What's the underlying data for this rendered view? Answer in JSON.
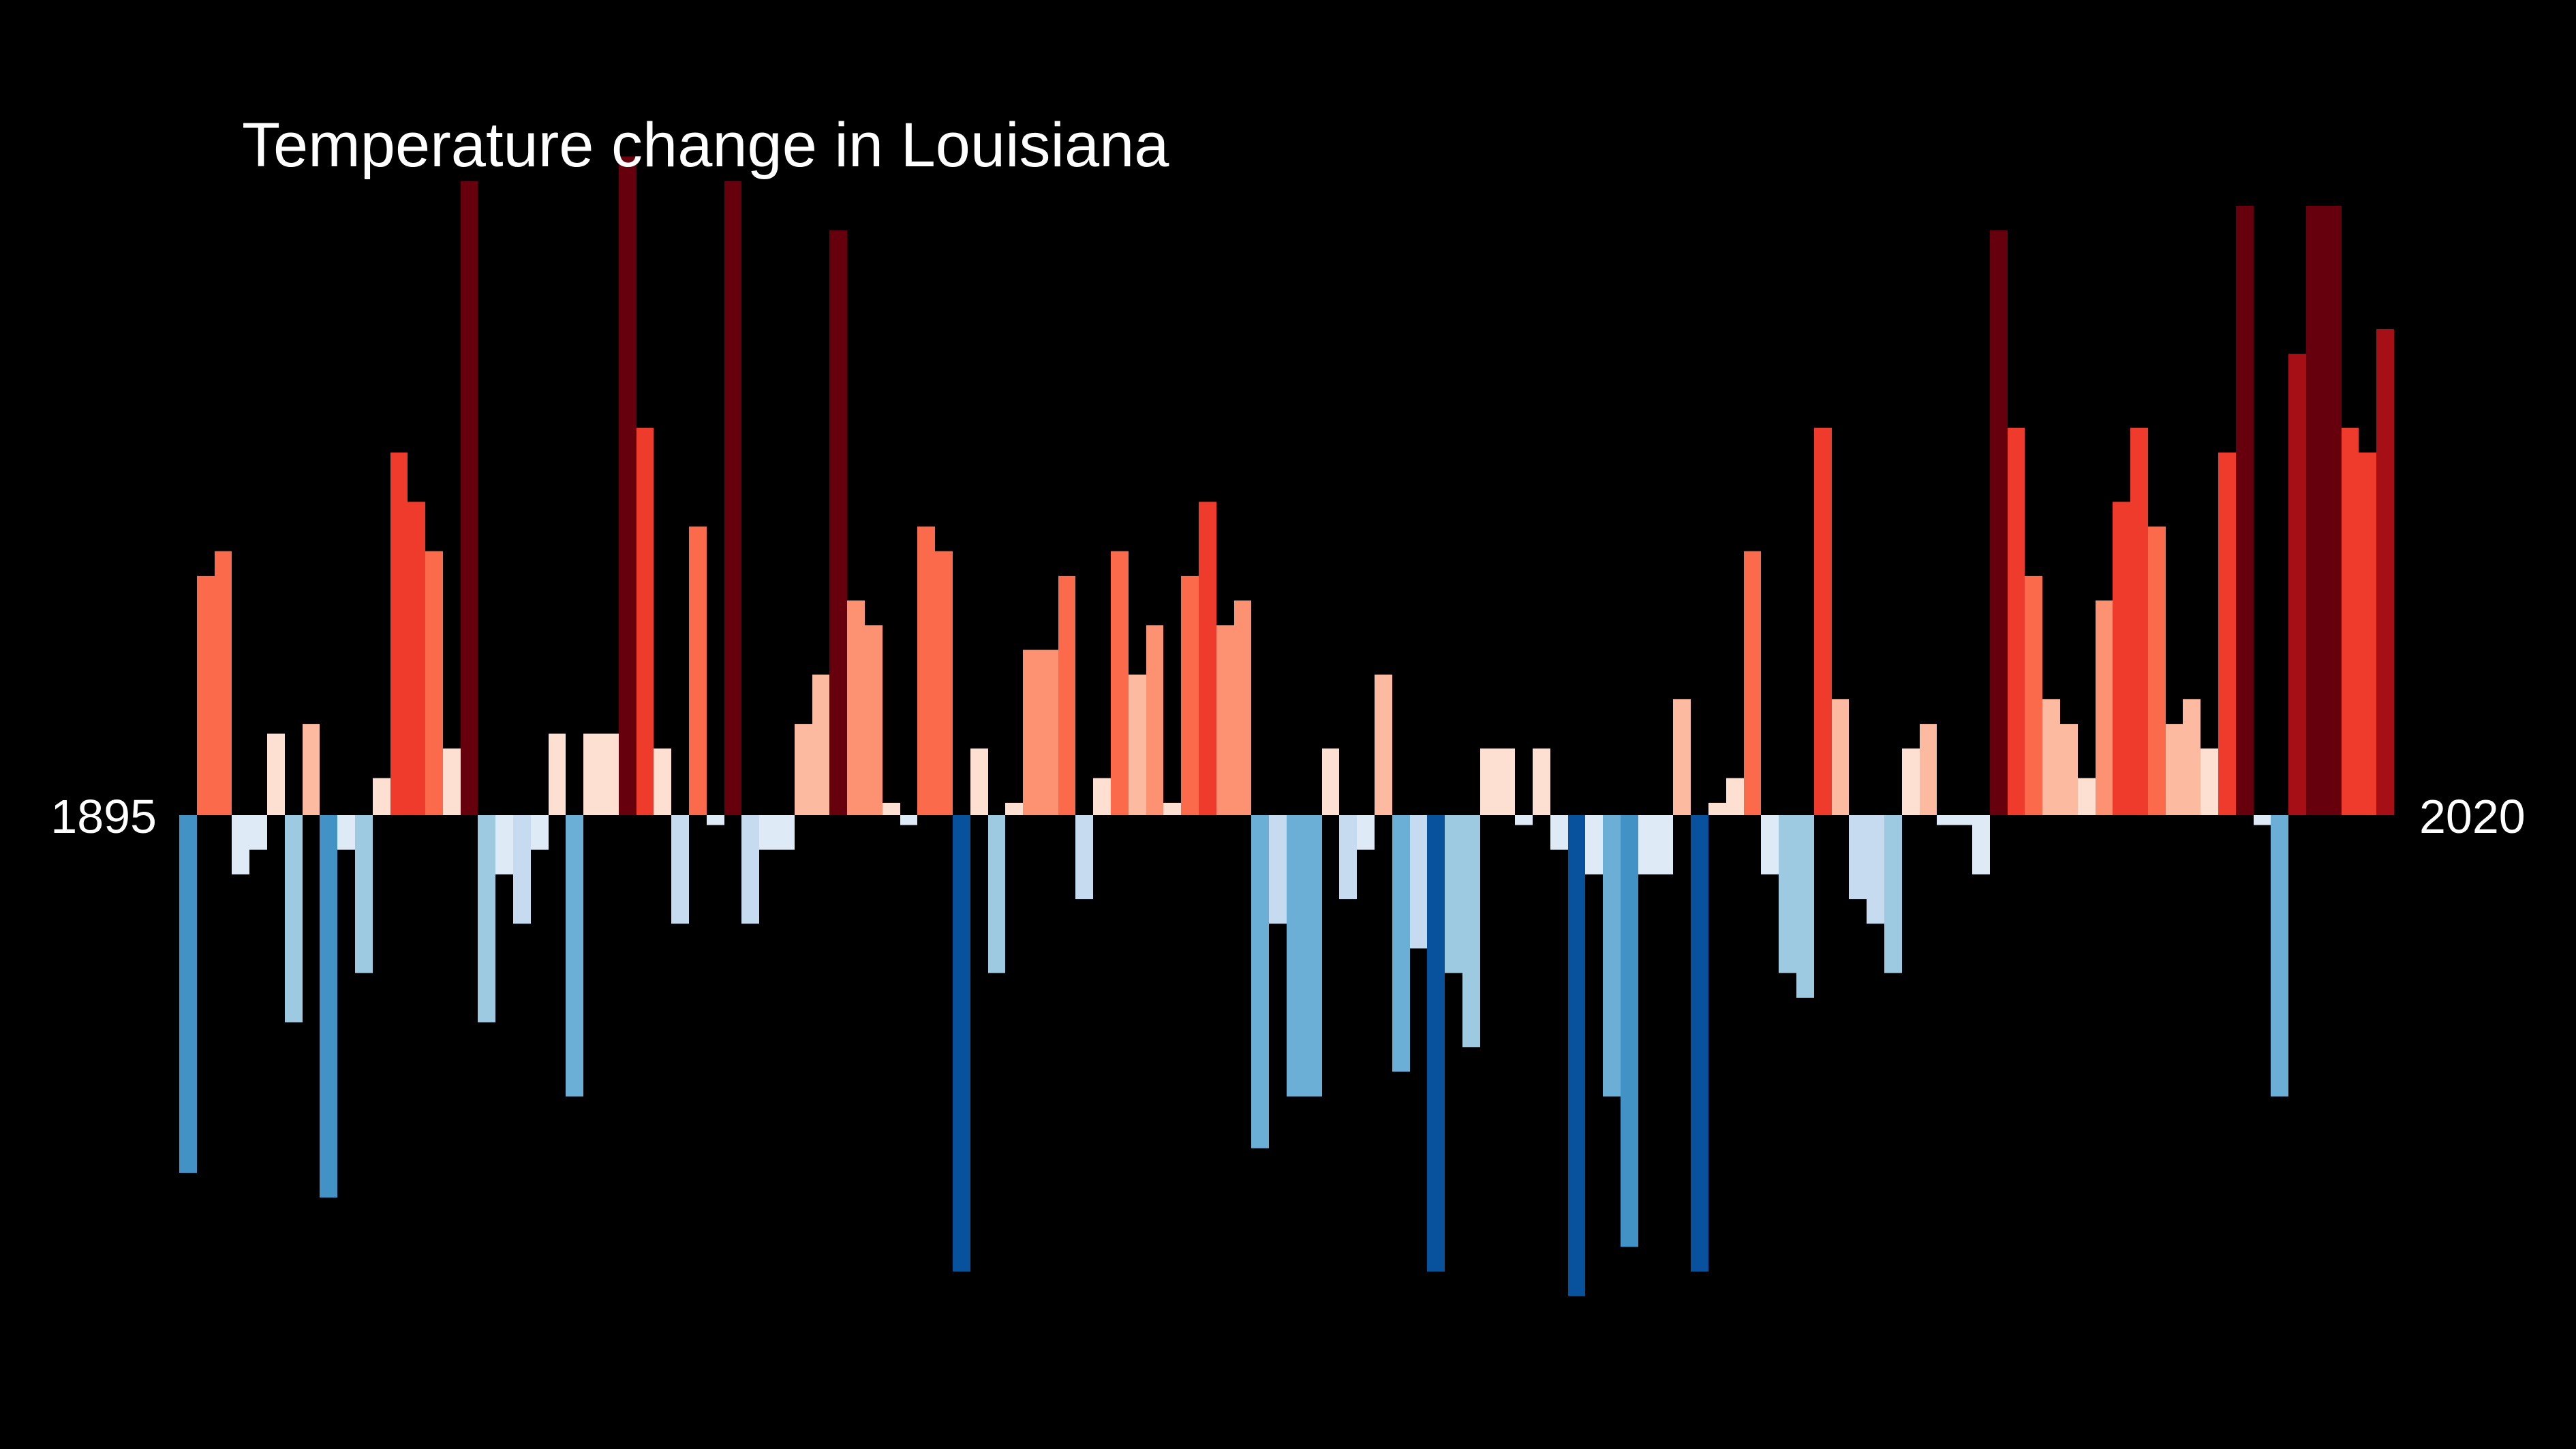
{
  "chart_data": {
    "type": "bar",
    "title": "Temperature change in Louisiana",
    "xlabel": "",
    "ylabel": "",
    "start_year": "1895",
    "end_year": "2020",
    "x": [
      1895,
      1896,
      1897,
      1898,
      1899,
      1900,
      1901,
      1902,
      1903,
      1904,
      1905,
      1906,
      1907,
      1908,
      1909,
      1910,
      1911,
      1912,
      1913,
      1914,
      1915,
      1916,
      1917,
      1918,
      1919,
      1920,
      1921,
      1922,
      1923,
      1924,
      1925,
      1926,
      1927,
      1928,
      1929,
      1930,
      1931,
      1932,
      1933,
      1934,
      1935,
      1936,
      1937,
      1938,
      1939,
      1940,
      1941,
      1942,
      1943,
      1944,
      1945,
      1946,
      1947,
      1948,
      1949,
      1950,
      1951,
      1952,
      1953,
      1954,
      1955,
      1956,
      1957,
      1958,
      1959,
      1960,
      1961,
      1962,
      1963,
      1964,
      1965,
      1966,
      1967,
      1968,
      1969,
      1970,
      1971,
      1972,
      1973,
      1974,
      1975,
      1976,
      1977,
      1978,
      1979,
      1980,
      1981,
      1982,
      1983,
      1984,
      1985,
      1986,
      1987,
      1988,
      1989,
      1990,
      1991,
      1992,
      1993,
      1994,
      1995,
      1996,
      1997,
      1998,
      1999,
      2000,
      2001,
      2002,
      2003,
      2004,
      2005,
      2006,
      2007,
      2008,
      2009,
      2010,
      2011,
      2012,
      2013,
      2014,
      2015,
      2016,
      2017,
      2018,
      2019,
      2020
    ],
    "values": [
      -14.5,
      9.7,
      10.7,
      -2.4,
      -1.4,
      3.3,
      -8.4,
      3.7,
      -15.5,
      -1.4,
      -6.4,
      1.5,
      14.7,
      12.7,
      10.7,
      2.7,
      25.7,
      -8.4,
      -2.4,
      -4.4,
      -1.4,
      3.3,
      -11.4,
      3.3,
      3.3,
      26.7,
      15.7,
      2.7,
      -4.4,
      11.7,
      -0.4,
      25.7,
      -4.4,
      -1.4,
      -1.4,
      3.7,
      5.7,
      23.7,
      8.7,
      7.7,
      0.5,
      -0.4,
      11.7,
      10.7,
      -18.5,
      2.7,
      -6.4,
      0.5,
      6.7,
      6.7,
      9.7,
      -3.4,
      1.5,
      10.7,
      5.7,
      7.7,
      0.5,
      9.7,
      12.7,
      7.7,
      8.7,
      -13.5,
      -4.4,
      -11.4,
      -11.4,
      2.7,
      -3.4,
      -1.4,
      5.7,
      -10.4,
      -5.4,
      -18.5,
      -6.4,
      -9.4,
      2.7,
      2.7,
      -0.4,
      2.7,
      -1.4,
      -19.5,
      -2.4,
      -11.4,
      -17.5,
      -2.4,
      -2.4,
      4.7,
      -18.5,
      0.5,
      1.5,
      10.7,
      -2.4,
      -6.4,
      -7.4,
      15.7,
      4.7,
      -3.4,
      -4.4,
      -6.4,
      2.7,
      3.7,
      -0.4,
      -0.4,
      -2.4,
      23.7,
      15.7,
      9.7,
      4.7,
      3.7,
      1.5,
      8.7,
      12.7,
      15.7,
      11.7,
      3.7,
      4.7,
      2.7,
      14.7,
      24.7,
      -0.4,
      -11.4,
      18.7,
      24.7,
      24.7,
      15.7,
      14.7,
      19.7
    ],
    "ylim": [
      -21,
      27
    ],
    "grid": false,
    "legend": "none",
    "background_color": "#000000",
    "text_color": "#ffffff",
    "color_scale": [
      "#08306b",
      "#08519c",
      "#2171b5",
      "#4292c6",
      "#6baed6",
      "#9ecae1",
      "#c6dbef",
      "#deebf7",
      "#fee0d2",
      "#fcbba1",
      "#fc9272",
      "#fb6a4a",
      "#ef3b2c",
      "#cb181d",
      "#a50f15",
      "#67000d"
    ]
  }
}
